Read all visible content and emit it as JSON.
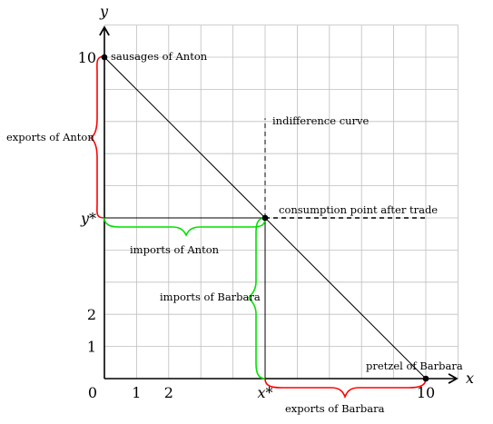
{
  "axes": {
    "x_label": "x",
    "y_label": "y",
    "x_ticks": [
      {
        "value": 0,
        "label": "0"
      },
      {
        "value": 1,
        "label": "1"
      },
      {
        "value": 2,
        "label": "2"
      },
      {
        "value": 5,
        "label": "x*"
      },
      {
        "value": 10,
        "label": "10"
      }
    ],
    "y_ticks": [
      {
        "value": 1,
        "label": "1"
      },
      {
        "value": 2,
        "label": "2"
      },
      {
        "value": 5,
        "label": "y*"
      },
      {
        "value": 10,
        "label": "10"
      }
    ],
    "range": {
      "x": [
        0,
        11
      ],
      "y": [
        0,
        11
      ]
    }
  },
  "points": {
    "anton": {
      "x": 0,
      "y": 10,
      "label": "sausages of Anton"
    },
    "barbara": {
      "x": 10,
      "y": 0,
      "label": "pretzel of Barbara"
    },
    "trade": {
      "x": 5,
      "y": 5,
      "label": "consumption point after trade"
    }
  },
  "annotations": {
    "indifference": "indifference curve",
    "exports_anton": "exports of Anton",
    "imports_anton": "imports of Anton",
    "imports_barbara": "imports of Barbara",
    "exports_barbara": "exports of Barbara"
  },
  "colors": {
    "grid": "#bfbfbf",
    "axis": "#000000",
    "red": "#ff0000",
    "green": "#00e000"
  }
}
